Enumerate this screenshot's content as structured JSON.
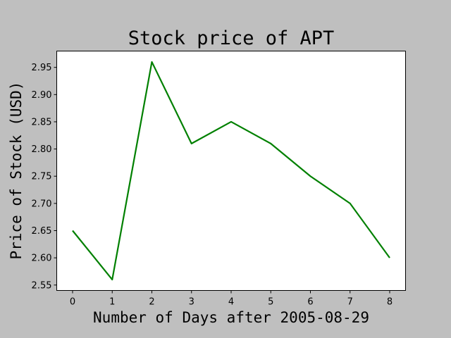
{
  "chart_data": {
    "type": "line",
    "title": "Stock price of APT",
    "xlabel": "Number of Days after 2005-08-29",
    "ylabel": "Price of Stock (USD)",
    "x": [
      0,
      1,
      2,
      3,
      4,
      5,
      6,
      7,
      8
    ],
    "series": [
      {
        "values": [
          2.65,
          2.56,
          2.96,
          2.81,
          2.85,
          2.81,
          2.75,
          2.7,
          2.6
        ],
        "color": "#008000"
      }
    ],
    "xticks": [
      "0",
      "1",
      "2",
      "3",
      "4",
      "5",
      "6",
      "7",
      "8"
    ],
    "yticks": [
      "2.55",
      "2.60",
      "2.65",
      "2.70",
      "2.75",
      "2.80",
      "2.85",
      "2.90",
      "2.95"
    ],
    "xlim": [
      -0.4,
      8.4
    ],
    "ylim": [
      2.54,
      2.98
    ],
    "grid": false,
    "background": "#bfbfbf",
    "plot_background": "#ffffff"
  }
}
